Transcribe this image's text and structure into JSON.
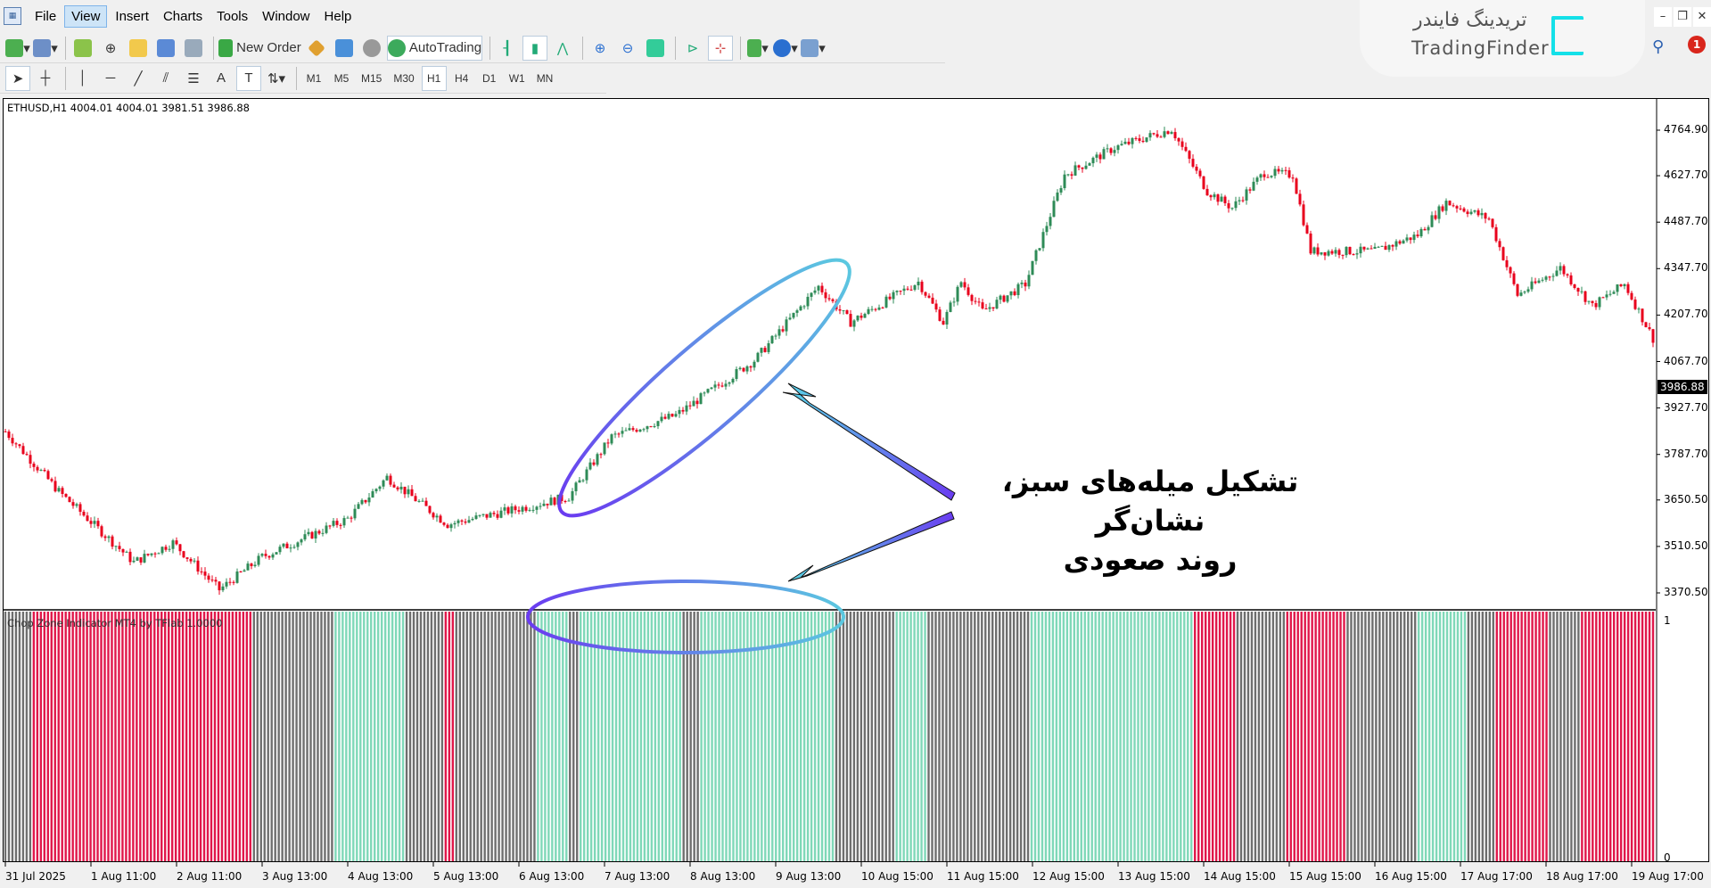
{
  "menu": [
    "File",
    "View",
    "Insert",
    "Charts",
    "Tools",
    "Window",
    "Help"
  ],
  "menu_selected": "View",
  "toolbar": {
    "new_order": "New Order",
    "autotrading": "AutoTrading"
  },
  "timeframes": [
    "M1",
    "M5",
    "M15",
    "M30",
    "H1",
    "H4",
    "D1",
    "W1",
    "MN"
  ],
  "timeframe_selected": "H1",
  "logo": {
    "fa": "تریدینگ فایندر",
    "en": "TradingFinder"
  },
  "notifications": "1",
  "chart": {
    "symbol_line": "ETHUSD,H1  4004.01 4004.01 3981.51 3986.88",
    "current_price": "3986.88",
    "indicator_label": "Chop Zone Indicator MT4 by TFlab 1.0000",
    "indicator_max": "1",
    "indicator_min": "0"
  },
  "annotation": {
    "line1": "تشکیل میله‌های سبز، نشان‌گر",
    "line2": "روند صعودی"
  },
  "colors": {
    "bull": "#2e8b57",
    "bear": "#e8001c",
    "zone_red": "#e0174a",
    "zone_teal": "#7fd8b8",
    "zone_gray": "#6e6e6e",
    "ellipse_start": "#6a3cf0",
    "ellipse_end": "#5bc8e0"
  },
  "chart_data": {
    "type": "candlestick",
    "ylim": [
      3370.5,
      4764.9
    ],
    "y_ticks": [
      "4764.90",
      "4627.70",
      "4487.70",
      "4347.70",
      "4207.70",
      "4067.70",
      "3927.70",
      "3787.70",
      "3650.50",
      "3510.50",
      "3370.50"
    ],
    "x_ticks": [
      "31 Jul 2025",
      "1 Aug 11:00",
      "2 Aug 11:00",
      "3 Aug 13:00",
      "4 Aug 13:00",
      "5 Aug 13:00",
      "6 Aug 13:00",
      "7 Aug 13:00",
      "8 Aug 13:00",
      "9 Aug 13:00",
      "10 Aug 15:00",
      "11 Aug 15:00",
      "12 Aug 15:00",
      "13 Aug 15:00",
      "14 Aug 15:00",
      "15 Aug 15:00",
      "16 Aug 15:00",
      "17 Aug 17:00",
      "18 Aug 17:00",
      "19 Aug 17:00"
    ],
    "price_path": [
      [
        "31 Jul 11:00",
        3857
      ],
      [
        "1 Aug 02:00",
        3676
      ],
      [
        "1 Aug 23:00",
        3463
      ],
      [
        "2 Aug 10:00",
        3522
      ],
      [
        "2 Aug 23:00",
        3380
      ],
      [
        "3 Aug 11:00",
        3479
      ],
      [
        "4 Aug 11:00",
        3594
      ],
      [
        "4 Aug 22:00",
        3719
      ],
      [
        "5 Aug 15:00",
        3577
      ],
      [
        "6 Aug 12:00",
        3627
      ],
      [
        "7 Aug 01:00",
        3660
      ],
      [
        "7 Aug 13:00",
        3841
      ],
      [
        "8 Aug 07:00",
        3906
      ],
      [
        "9 Aug 05:00",
        4071
      ],
      [
        "9 Aug 23:00",
        4294
      ],
      [
        "10 Aug 08:00",
        4186
      ],
      [
        "11 Aug 03:00",
        4308
      ],
      [
        "11 Aug 10:00",
        4186
      ],
      [
        "11 Aug 15:00",
        4308
      ],
      [
        "11 Aug 21:00",
        4219
      ],
      [
        "12 Aug 09:00",
        4301
      ],
      [
        "12 Aug 20:00",
        4630
      ],
      [
        "13 Aug 10:00",
        4712
      ],
      [
        "14 Aug 02:00",
        4768
      ],
      [
        "14 Aug 12:00",
        4581
      ],
      [
        "14 Aug 19:00",
        4531
      ],
      [
        "15 Aug 04:00",
        4637
      ],
      [
        "15 Aug 12:00",
        4630
      ],
      [
        "15 Aug 17:00",
        4400
      ],
      [
        "16 Aug 11:00",
        4400
      ],
      [
        "16 Aug 23:00",
        4449
      ],
      [
        "17 Aug 07:00",
        4548
      ],
      [
        "17 Aug 19:00",
        4498
      ],
      [
        "18 Aug 03:00",
        4268
      ],
      [
        "18 Aug 15:00",
        4350
      ],
      [
        "19 Aug 00:00",
        4235
      ],
      [
        "19 Aug 09:00",
        4301
      ],
      [
        "19 Aug 17:00",
        4137
      ]
    ],
    "indicator": {
      "name": "Chop Zone",
      "range": [
        0,
        1
      ],
      "runs": [
        [
          "gray",
          8
        ],
        [
          "red",
          62
        ],
        [
          "gray",
          23
        ],
        [
          "teal",
          20
        ],
        [
          "gray",
          11
        ],
        [
          "red",
          3
        ],
        [
          "gray",
          23
        ],
        [
          "teal",
          9
        ],
        [
          "gray",
          3
        ],
        [
          "teal",
          29
        ],
        [
          "gray",
          5
        ],
        [
          "teal",
          38
        ],
        [
          "gray",
          17
        ],
        [
          "teal",
          9
        ],
        [
          "gray",
          29
        ],
        [
          "teal",
          46
        ],
        [
          "red",
          12
        ],
        [
          "gray",
          14
        ],
        [
          "red",
          17
        ],
        [
          "gray",
          20
        ],
        [
          "teal",
          14
        ],
        [
          "gray",
          8
        ],
        [
          "red",
          15
        ],
        [
          "gray",
          9
        ],
        [
          "red",
          21
        ]
      ]
    }
  }
}
